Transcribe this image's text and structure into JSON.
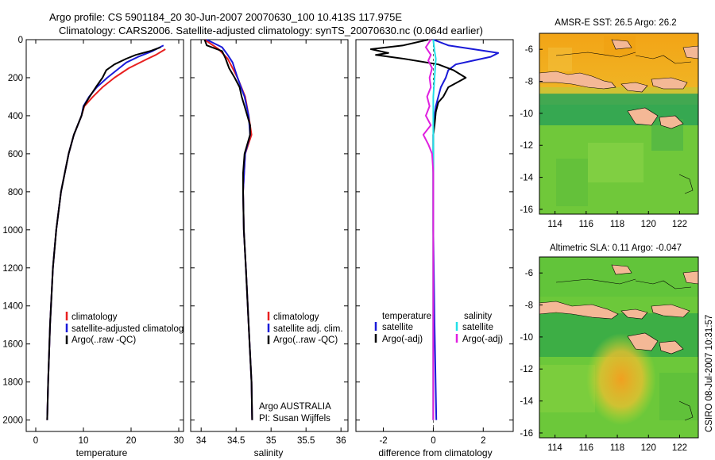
{
  "header": {
    "line1": "Argo profile: CS 5901184_20 30-Jun-2007 20070630_100 10.413S 117.975E",
    "line2": "Climatology: CARS2006. Satellite-adjusted climatology: synTS_20070630.nc (0.064d earlier)"
  },
  "credit": "CSIRO 08-Jul-2007 10:31:57",
  "colors": {
    "climatology": "#e82020",
    "satellite": "#1a1ad8",
    "argo": "#000000",
    "salinity_satellite": "#22e0e8",
    "salinity_argo": "#e020e0"
  },
  "chart_data": [
    {
      "type": "line",
      "xlabel": "temperature",
      "xlim": [
        -2,
        31
      ],
      "ylim": [
        2060,
        0
      ],
      "xticks": [
        "0",
        "10",
        "20",
        "30"
      ],
      "yticks": [
        "0",
        "200",
        "400",
        "600",
        "800",
        "1000",
        "1200",
        "1400",
        "1600",
        "1800",
        "2000"
      ],
      "legend": [
        "climatology",
        "satellite-adjusted climatology",
        "Argo(..raw -QC)"
      ],
      "series": [
        {
          "name": "climatology",
          "depth": [
            50,
            80,
            100,
            150,
            200,
            250,
            300,
            350,
            400,
            500,
            600,
            800,
            1000,
            1200,
            1500,
            1800,
            2000
          ],
          "values": [
            27.2,
            25.2,
            23.5,
            19.5,
            16.5,
            14.0,
            12.0,
            10.2,
            9.6,
            8.0,
            6.9,
            5.3,
            4.3,
            3.6,
            3.0,
            2.6,
            2.4
          ]
        },
        {
          "name": "satellite-adjusted climatology",
          "depth": [
            30,
            60,
            90,
            120,
            150,
            200,
            250,
            300,
            350,
            400,
            500,
            600,
            800,
            1000,
            1200,
            1500,
            1800,
            2000
          ],
          "values": [
            26.8,
            24.5,
            21.5,
            19.0,
            17.5,
            15.0,
            12.8,
            11.2,
            10.0,
            9.6,
            8.0,
            6.9,
            5.3,
            4.3,
            3.6,
            3.0,
            2.6,
            2.4
          ]
        },
        {
          "name": "Argo(..raw -QC)",
          "depth": [
            40,
            60,
            80,
            100,
            130,
            160,
            200,
            250,
            300,
            350,
            400,
            500,
            600,
            800,
            1000,
            1200,
            1500,
            1800,
            2000
          ],
          "values": [
            26.2,
            24.0,
            21.0,
            19.0,
            16.5,
            14.8,
            14.0,
            12.6,
            11.3,
            10.1,
            9.6,
            8.0,
            6.9,
            5.3,
            4.3,
            3.6,
            3.0,
            2.6,
            2.4
          ]
        }
      ]
    },
    {
      "type": "line",
      "xlabel": "salinity",
      "xlim": [
        33.85,
        36.1
      ],
      "ylim": [
        2060,
        0
      ],
      "xticks": [
        "34",
        "34.5",
        "35",
        "35.5",
        "36"
      ],
      "legend": [
        "climatology",
        "satellite adj. clim.",
        "Argo(..raw -QC)"
      ],
      "annotation": [
        "Argo AUSTRALIA",
        "PI: Susan Wijffels"
      ],
      "series": [
        {
          "name": "climatology",
          "depth": [
            0,
            50,
            100,
            200,
            300,
            400,
            500,
            600,
            800,
            1000,
            1200,
            1500,
            1800,
            2000
          ],
          "values": [
            34.05,
            34.25,
            34.38,
            34.52,
            34.63,
            34.68,
            34.72,
            34.63,
            34.6,
            34.61,
            34.64,
            34.68,
            34.72,
            34.73
          ]
        },
        {
          "name": "satellite adj. clim.",
          "depth": [
            0,
            40,
            80,
            120,
            200,
            300,
            400,
            500,
            600,
            800,
            1000,
            1200,
            1500,
            1800,
            2000
          ],
          "values": [
            34.08,
            34.3,
            34.38,
            34.45,
            34.52,
            34.62,
            34.68,
            34.7,
            34.63,
            34.6,
            34.61,
            34.64,
            34.68,
            34.72,
            34.73
          ]
        },
        {
          "name": "Argo(..raw -QC)",
          "depth": [
            0,
            30,
            60,
            100,
            150,
            200,
            250,
            300,
            350,
            400,
            450,
            500,
            550,
            600,
            700,
            800,
            1000,
            1200,
            1500,
            1800,
            2000
          ],
          "values": [
            34.05,
            34.08,
            34.3,
            34.35,
            34.4,
            34.48,
            34.55,
            34.58,
            34.62,
            34.66,
            34.7,
            34.7,
            34.66,
            34.62,
            34.6,
            34.6,
            34.61,
            34.64,
            34.68,
            34.72,
            34.73
          ]
        }
      ]
    },
    {
      "type": "line",
      "xlabel": "difference from climatology",
      "xlim": [
        -3.1,
        3.2
      ],
      "ylim": [
        2060,
        0
      ],
      "xticks": [
        "-2",
        "0",
        "2"
      ],
      "legend_titles": [
        "temperature",
        "salinity"
      ],
      "legend": [
        "satellite",
        "Argo(-adj)",
        "satellite",
        "Argo(-adj)"
      ],
      "series": [
        {
          "name": "satellite",
          "quantity": "temperature",
          "depth": [
            0,
            30,
            50,
            70,
            90,
            110,
            130,
            160,
            200,
            250,
            300,
            350,
            400,
            500,
            700,
            1000,
            1500,
            2000
          ],
          "values": [
            0.0,
            0.6,
            1.6,
            2.6,
            2.3,
            1.6,
            0.9,
            0.6,
            0.5,
            0.3,
            0.2,
            0.1,
            0.05,
            0.0,
            0.0,
            0.0,
            0.05,
            0.12
          ]
        },
        {
          "name": "Argo(-adj)",
          "quantity": "temperature",
          "depth": [
            0,
            30,
            50,
            70,
            80,
            100,
            130,
            160,
            200,
            250,
            300,
            330,
            380,
            450,
            500,
            600,
            800,
            1000,
            1500,
            2000
          ],
          "values": [
            -0.2,
            -1.2,
            -2.5,
            -1.8,
            -2.3,
            -1.2,
            0.2,
            0.8,
            1.3,
            0.6,
            0.4,
            0.2,
            0.1,
            0.05,
            0.0,
            0.0,
            0.0,
            0.0,
            0.0,
            0.0
          ]
        },
        {
          "name": "satellite",
          "quantity": "salinity",
          "depth": [
            0,
            60,
            100,
            200,
            300,
            400,
            600,
            1000,
            1500,
            2000
          ],
          "values": [
            0.0,
            0.05,
            0.1,
            0.05,
            0.0,
            0.0,
            0.0,
            0.0,
            0.0,
            0.0
          ]
        },
        {
          "name": "Argo(-adj)",
          "quantity": "salinity",
          "depth": [
            0,
            40,
            80,
            110,
            150,
            200,
            250,
            300,
            350,
            400,
            450,
            500,
            550,
            600,
            700,
            1000,
            1500,
            2000
          ],
          "values": [
            -0.1,
            -0.3,
            -0.1,
            -0.2,
            -0.05,
            -0.15,
            -0.1,
            -0.25,
            -0.15,
            -0.3,
            -0.1,
            -0.4,
            -0.2,
            -0.05,
            0.0,
            0.0,
            0.0,
            0.0
          ]
        }
      ]
    },
    {
      "type": "heatmap",
      "title": "AMSR-E SST: 26.5 Argo: 26.2",
      "xticks": [
        "114",
        "116",
        "118",
        "120",
        "122"
      ],
      "yticks": [
        "-6",
        "-8",
        "-10",
        "-12",
        "-14",
        "-16"
      ],
      "xlim": [
        113,
        123.2
      ],
      "ylim": [
        -16.3,
        -5.0
      ],
      "marker": {
        "lon": 117.975,
        "lat": -10.413
      }
    },
    {
      "type": "heatmap",
      "title": "Altimetric SLA: 0.11 Argo: -0.047",
      "xticks": [
        "114",
        "116",
        "118",
        "120",
        "122"
      ],
      "yticks": [
        "-6",
        "-8",
        "-10",
        "-12",
        "-14",
        "-16"
      ],
      "xlim": [
        113,
        123.2
      ],
      "ylim": [
        -16.3,
        -5.0
      ],
      "marker": {
        "lon": 117.975,
        "lat": -10.413
      }
    }
  ]
}
